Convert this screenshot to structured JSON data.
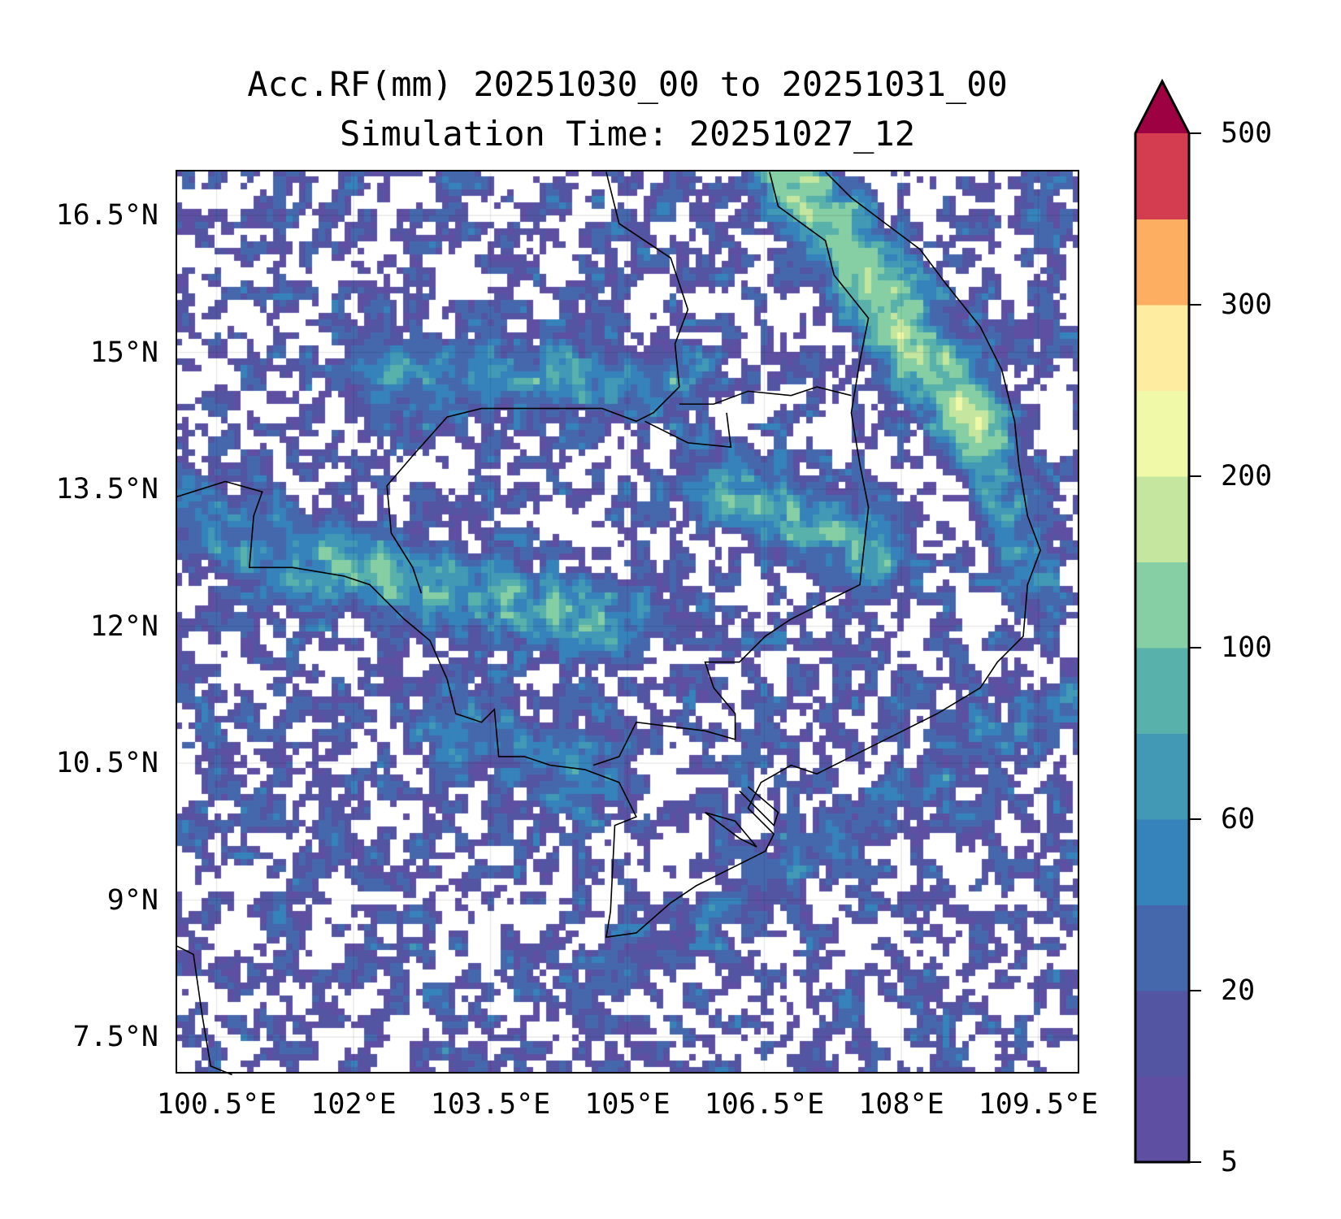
{
  "chart_data": {
    "type": "heatmap",
    "subtype": "filled-contour map",
    "title_line1": "Acc.RF(mm) 20251030_00 to 20251031_00",
    "title_line2": "Simulation Time: 20251027_12",
    "xlim": [
      100.05,
      109.95
    ],
    "ylim": [
      7.1,
      17.0
    ],
    "x_ticks": [
      100.5,
      102,
      103.5,
      105,
      106.5,
      108,
      109.5
    ],
    "x_tick_labels": [
      "100.5°E",
      "102°E",
      "103.5°E",
      "105°E",
      "106.5°E",
      "108°E",
      "109.5°E"
    ],
    "y_ticks": [
      16.5,
      15,
      13.5,
      12,
      10.5,
      9,
      7.5
    ],
    "y_tick_labels": [
      "16.5°N",
      "15°N",
      "13.5°N",
      "12°N",
      "10.5°N",
      "9°N",
      "7.5°N"
    ],
    "grid": true,
    "colorbar": {
      "levels": [
        5,
        10,
        20,
        40,
        60,
        80,
        100,
        150,
        200,
        250,
        300,
        400,
        500
      ],
      "colors": [
        "#5e4fa2",
        "#5355a3",
        "#4568ad",
        "#3682ba",
        "#4199b6",
        "#58b1aa",
        "#86cfa5",
        "#c4e69e",
        "#f0f9a7",
        "#feeda1",
        "#fdae61",
        "#d43d4f"
      ],
      "extend_color": "#9e0142",
      "extend": "max",
      "tick_values": [
        5,
        20,
        60,
        100,
        200,
        300,
        500
      ],
      "tick_labels": [
        "5",
        "20",
        "60",
        "100",
        "200",
        "300",
        "500"
      ],
      "placement": "right"
    }
  }
}
